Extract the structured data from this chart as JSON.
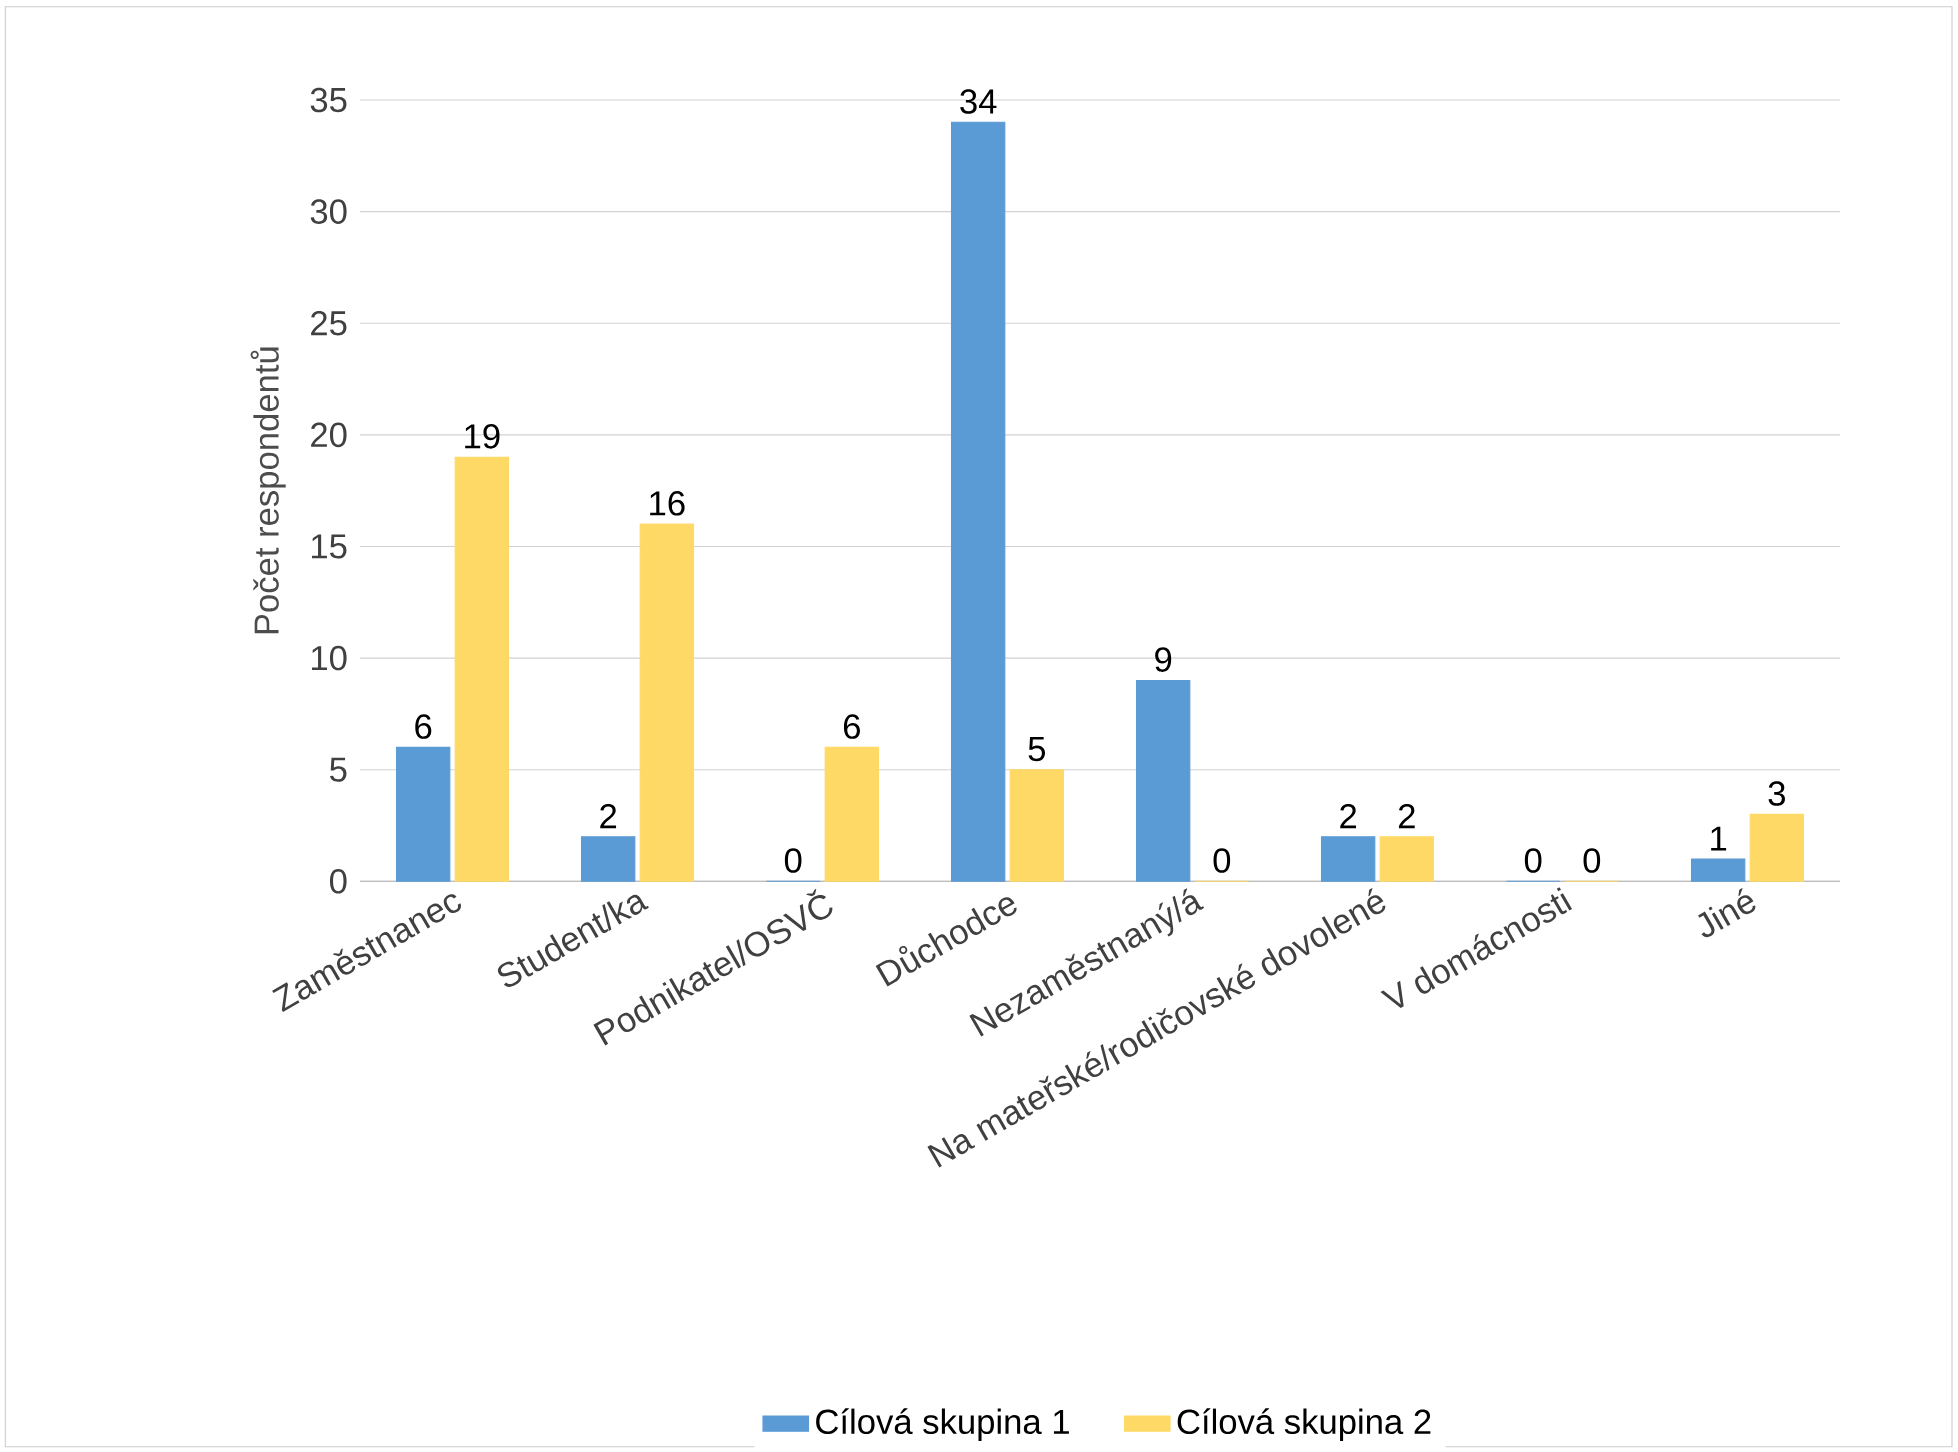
{
  "chart_data": {
    "type": "bar",
    "ylabel": "Počet respondentů",
    "categories": [
      "Zaměstnanec",
      "Student/ka",
      "Podnikatel/OSVČ",
      "Důchodce",
      "Nezaměstnaný/á",
      "Na mateřské/rodičovské dovolené",
      "V domácnosti",
      "Jiné"
    ],
    "series": [
      {
        "name": "Cílová skupina 1",
        "color": "#5b9bd5",
        "values": [
          6,
          2,
          0,
          34,
          9,
          2,
          0,
          1
        ]
      },
      {
        "name": "Cílová skupina 2",
        "color": "#ffd966",
        "values": [
          19,
          16,
          6,
          5,
          0,
          2,
          0,
          3
        ]
      }
    ],
    "ylim": [
      0,
      35
    ],
    "yticks": [
      0,
      5,
      10,
      15,
      20,
      25,
      30,
      35
    ],
    "grid": "y",
    "legend": "bottom",
    "data_labels": true
  }
}
